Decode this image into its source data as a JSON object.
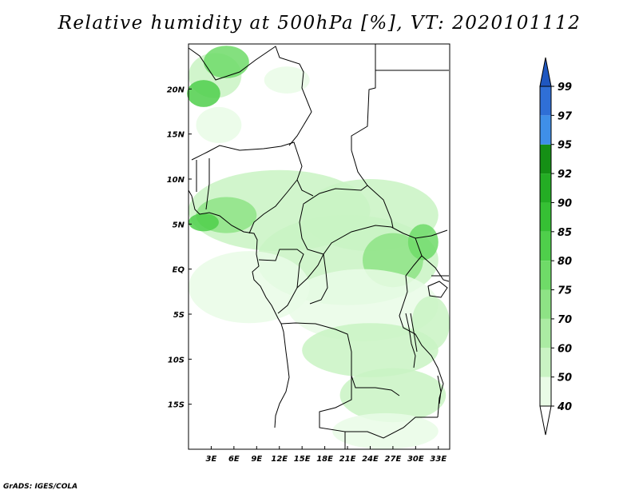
{
  "title": "Relative humidity at 500hPa [%], VT: 2020101112",
  "credit": "GrADS: IGES/COLA",
  "map": {
    "lon_range": [
      0,
      34.5
    ],
    "lat_range": [
      -20,
      25
    ],
    "lat_ticks": [
      {
        "lat": 20,
        "label": "20N"
      },
      {
        "lat": 15,
        "label": "15N"
      },
      {
        "lat": 10,
        "label": "10N"
      },
      {
        "lat": 5,
        "label": "5N"
      },
      {
        "lat": 0,
        "label": "EQ"
      },
      {
        "lat": -5,
        "label": "5S"
      },
      {
        "lat": -10,
        "label": "10S"
      },
      {
        "lat": -15,
        "label": "15S"
      }
    ],
    "lon_ticks": [
      {
        "lon": 3,
        "label": "3E"
      },
      {
        "lon": 6,
        "label": "6E"
      },
      {
        "lon": 9,
        "label": "9E"
      },
      {
        "lon": 12,
        "label": "12E"
      },
      {
        "lon": 15,
        "label": "15E"
      },
      {
        "lon": 18,
        "label": "18E"
      },
      {
        "lon": 21,
        "label": "21E"
      },
      {
        "lon": 24,
        "label": "24E"
      },
      {
        "lon": 27,
        "label": "27E"
      },
      {
        "lon": 30,
        "label": "30E"
      },
      {
        "lon": 33,
        "label": "33E"
      }
    ]
  },
  "colorbar": {
    "levels": [
      {
        "label": "40",
        "color": "#ffffff"
      },
      {
        "label": "50",
        "color": "#e9fbe6"
      },
      {
        "label": "60",
        "color": "#c9f3c3"
      },
      {
        "label": "70",
        "color": "#abeba3"
      },
      {
        "label": "75",
        "color": "#8ee385"
      },
      {
        "label": "80",
        "color": "#6fdb68"
      },
      {
        "label": "85",
        "color": "#4fcf4b"
      },
      {
        "label": "90",
        "color": "#36c034"
      },
      {
        "label": "92",
        "color": "#24ad24"
      },
      {
        "label": "95",
        "color": "#158f15"
      },
      {
        "label": "97",
        "color": "#3f8fe8"
      },
      {
        "label": "99",
        "color": "#2f6fd6"
      }
    ],
    "under_color": "#ffffff",
    "over_color": "#1f57c0"
  },
  "humidity_patches": [
    {
      "lon": 3.5,
      "lat": 21.5,
      "rx": 3.5,
      "ry": 2.5,
      "level": 2
    },
    {
      "lon": 5,
      "lat": 23,
      "rx": 3,
      "ry": 1.8,
      "level": 5
    },
    {
      "lon": 2,
      "lat": 19.5,
      "rx": 2.2,
      "ry": 1.5,
      "level": 6
    },
    {
      "lon": 13,
      "lat": 21,
      "rx": 3,
      "ry": 1.5,
      "level": 1
    },
    {
      "lon": 4,
      "lat": 16,
      "rx": 3,
      "ry": 2,
      "level": 1
    },
    {
      "lon": 12,
      "lat": 6.5,
      "rx": 12,
      "ry": 4.5,
      "level": 2
    },
    {
      "lon": 24,
      "lat": 6,
      "rx": 9,
      "ry": 4,
      "level": 2
    },
    {
      "lon": 5,
      "lat": 6,
      "rx": 4,
      "ry": 2,
      "level": 4
    },
    {
      "lon": 2,
      "lat": 5.2,
      "rx": 2,
      "ry": 1,
      "level": 6
    },
    {
      "lon": 21,
      "lat": 1,
      "rx": 12,
      "ry": 5,
      "level": 2
    },
    {
      "lon": 27,
      "lat": 1,
      "rx": 4,
      "ry": 3,
      "level": 4
    },
    {
      "lon": 31,
      "lat": 3,
      "rx": 2,
      "ry": 2,
      "level": 5
    },
    {
      "lon": 23,
      "lat": -4,
      "rx": 10,
      "ry": 4,
      "level": 1
    },
    {
      "lon": 8,
      "lat": -2,
      "rx": 8,
      "ry": 4,
      "level": 1
    },
    {
      "lon": 24,
      "lat": -9,
      "rx": 9,
      "ry": 3,
      "level": 2
    },
    {
      "lon": 27,
      "lat": -14,
      "rx": 7,
      "ry": 3,
      "level": 2
    },
    {
      "lon": 26,
      "lat": -18,
      "rx": 7,
      "ry": 2,
      "level": 1
    },
    {
      "lon": 32,
      "lat": -6,
      "rx": 2.5,
      "ry": 3,
      "level": 2
    }
  ]
}
